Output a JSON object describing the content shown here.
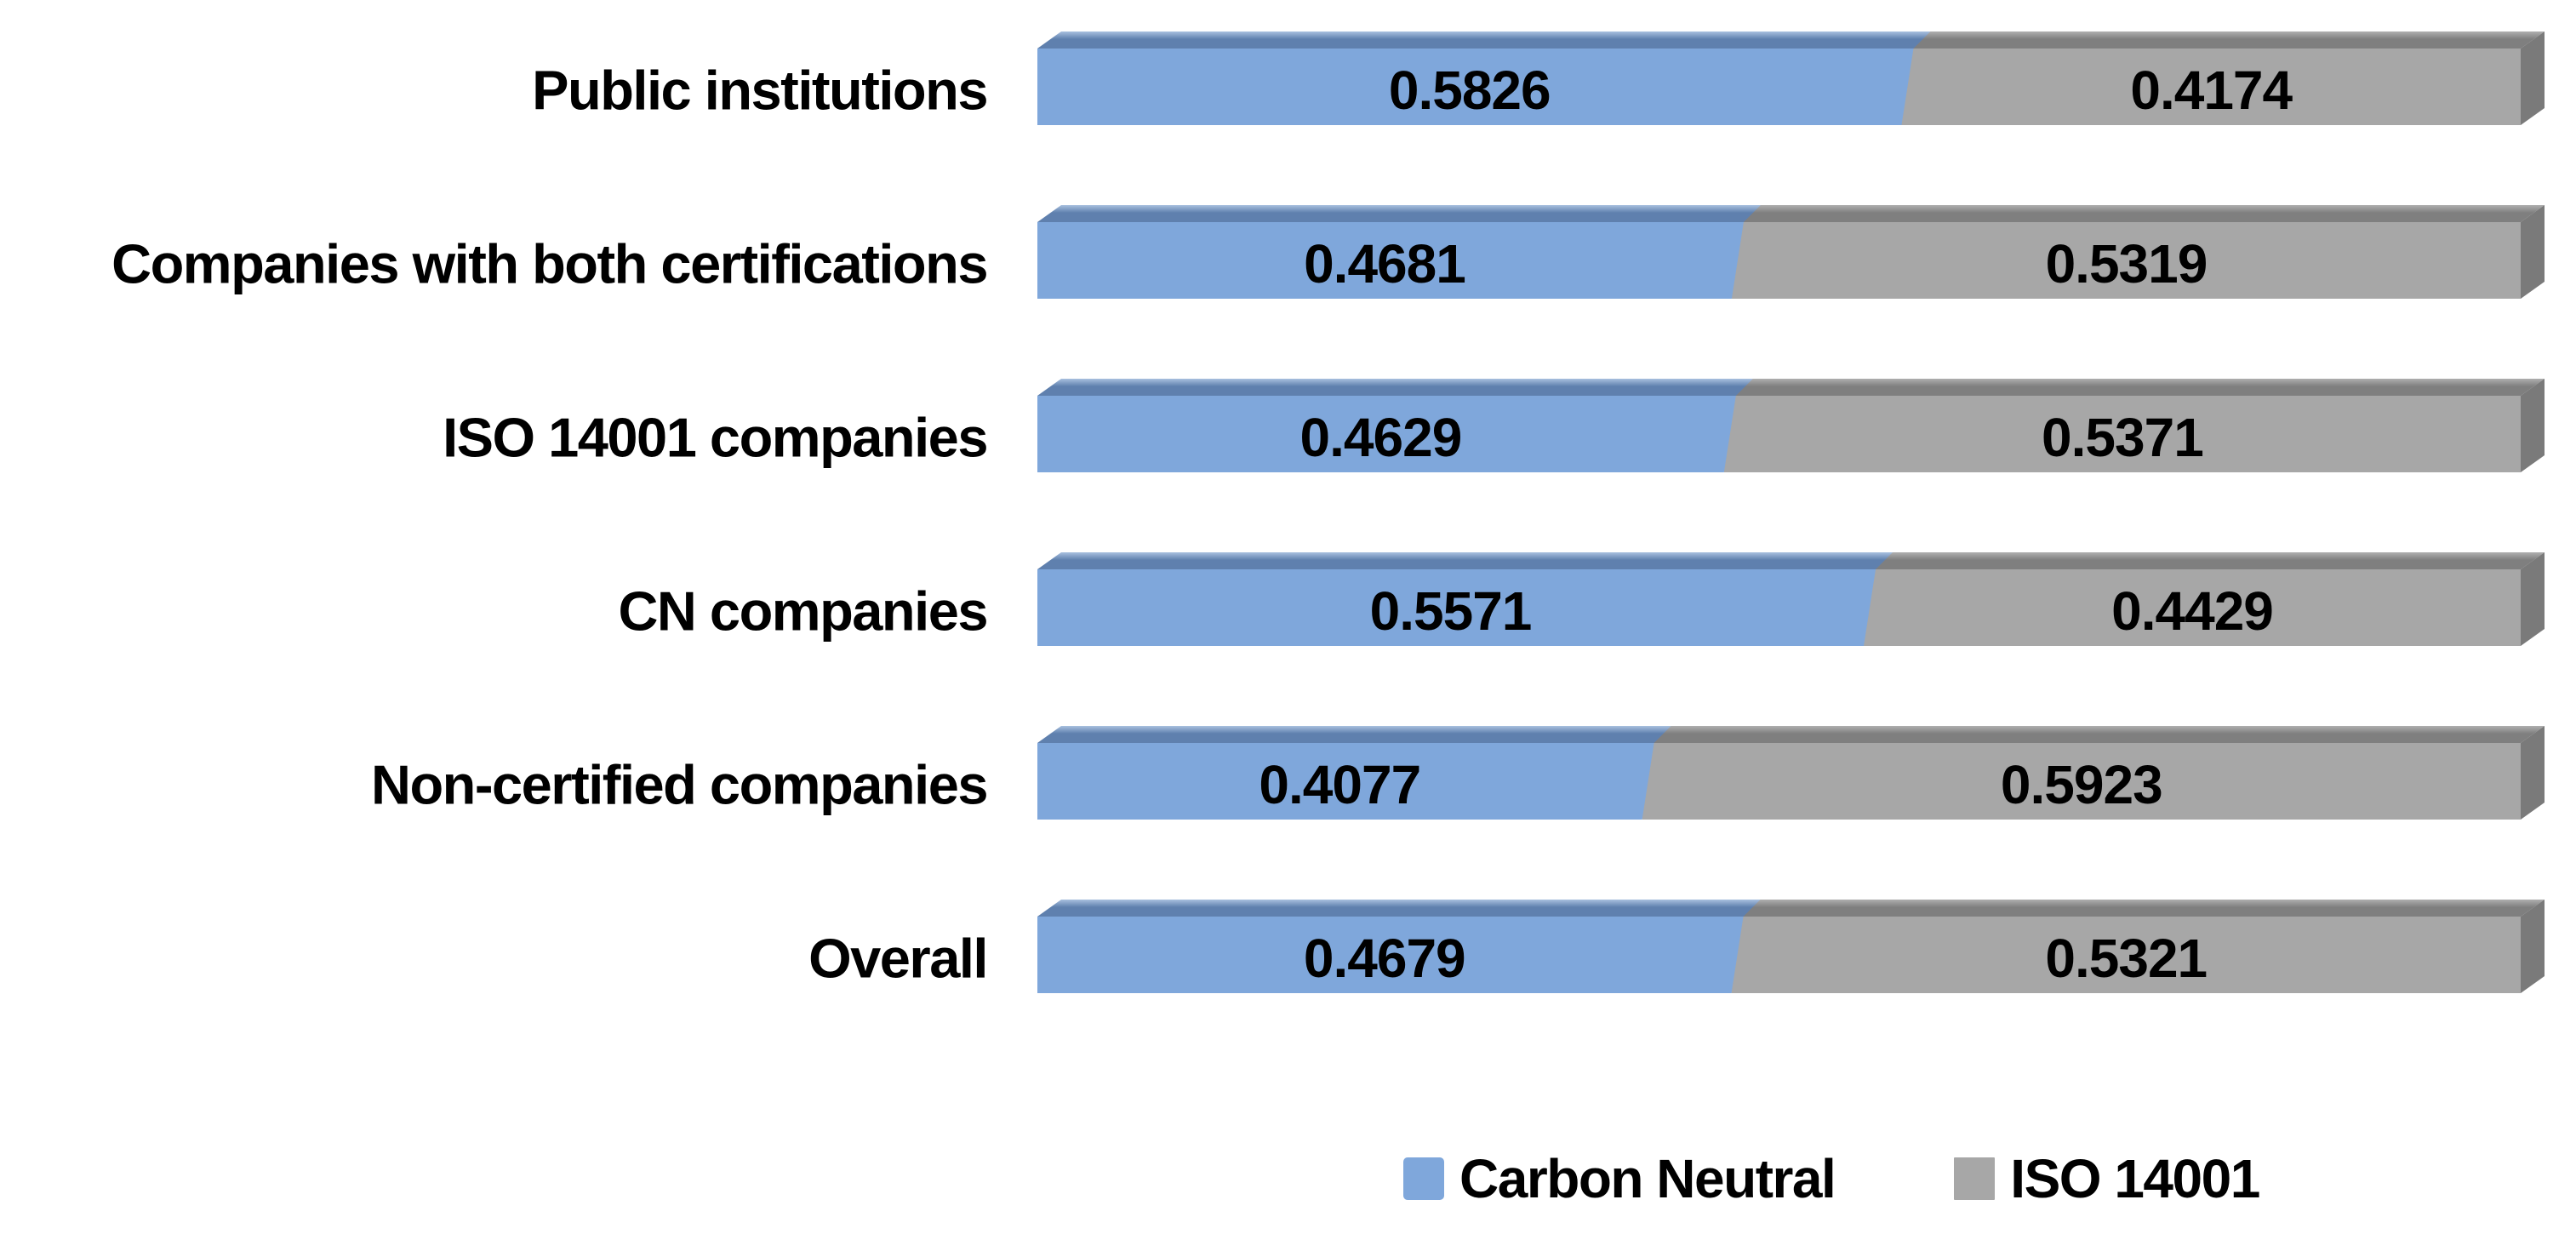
{
  "chart_data": {
    "type": "bar",
    "orientation": "horizontal",
    "stacked": true,
    "style": "3d-extruded",
    "title": "",
    "xlabel": "",
    "ylabel": "",
    "xlim": [
      0,
      1
    ],
    "grid": false,
    "axes_visible": false,
    "legend_position": "bottom",
    "value_label_decimals": 4,
    "value_label_color": "#000000",
    "category_label_color": "#000000",
    "background_color": "#ffffff",
    "categories": [
      "Public institutions",
      "Companies with both certifications",
      "ISO 14001 companies",
      "CN companies",
      "Non-certified companies",
      "Overall"
    ],
    "series": [
      {
        "name": "Carbon Neutral",
        "color": "#7FA7DB",
        "top_color_light": "#A8C0DF",
        "top_color_dark": "#5F80AE",
        "values": [
          0.5826,
          0.4681,
          0.4629,
          0.5571,
          0.4077,
          0.4679
        ]
      },
      {
        "name": "ISO 14001",
        "color": "#A7A7A7",
        "top_color_light": "#AFAFAF",
        "top_color_dark": "#7F7F7F",
        "side_color": "#7A7A7A",
        "values": [
          0.4174,
          0.5319,
          0.5371,
          0.4429,
          0.5923,
          0.5321
        ]
      }
    ]
  }
}
